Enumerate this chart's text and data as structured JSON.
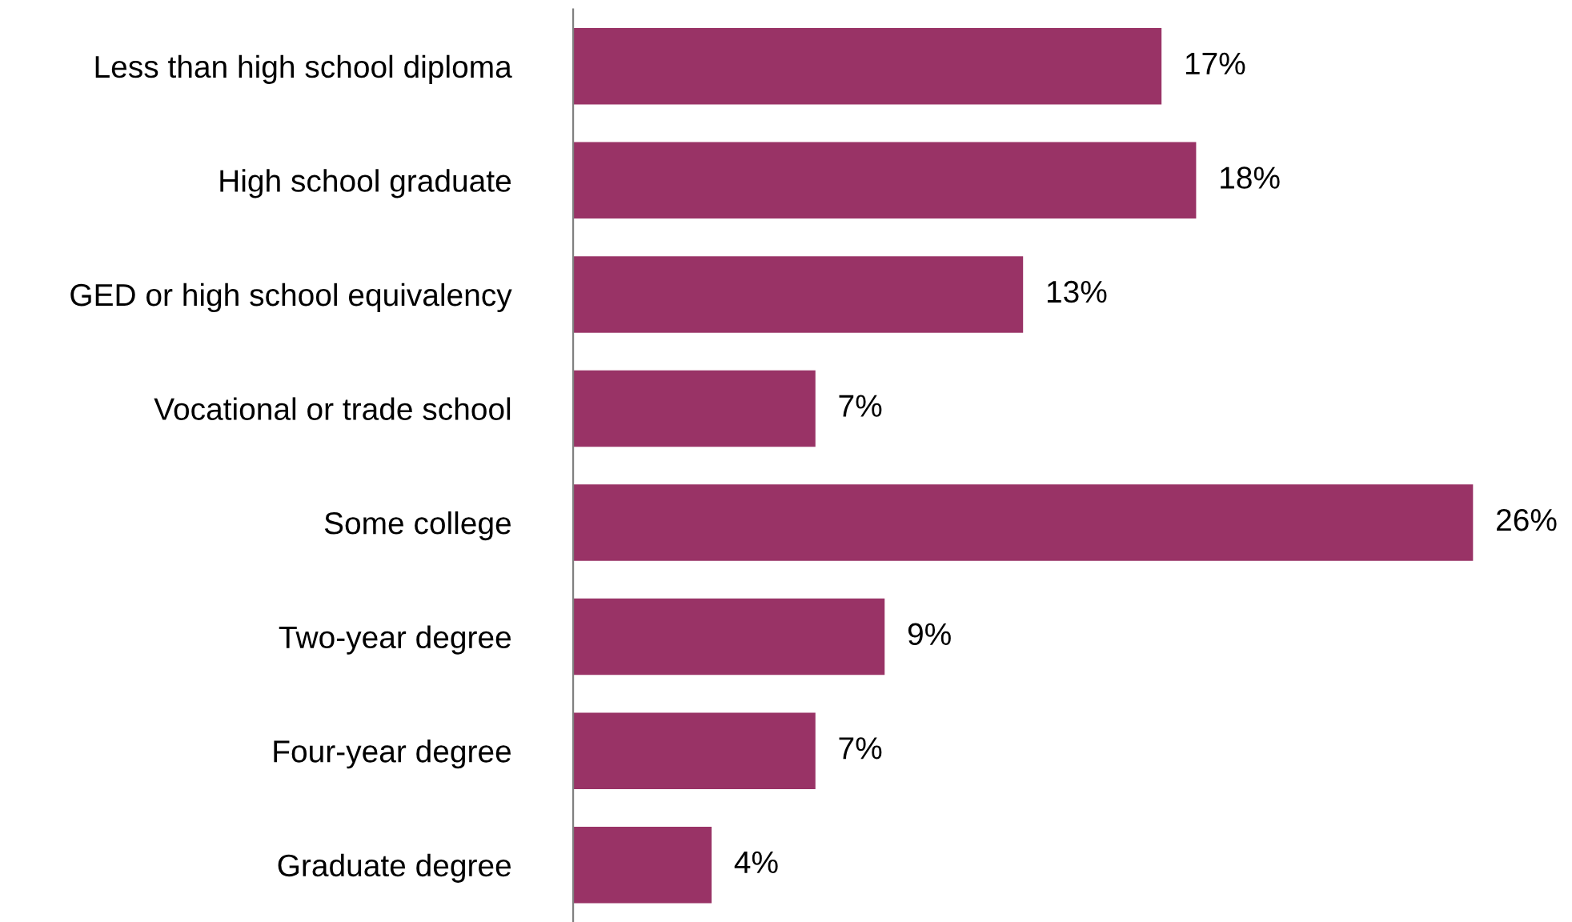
{
  "chart_data": {
    "type": "bar",
    "orientation": "horizontal",
    "categories": [
      "Less than high school diploma",
      "High school graduate",
      "GED or high school equivalency",
      "Vocational or trade school",
      "Some college",
      "Two-year degree",
      "Four-year degree",
      "Graduate degree"
    ],
    "values": [
      17,
      18,
      13,
      7,
      26,
      9,
      7,
      4
    ],
    "value_labels": [
      "17%",
      "18%",
      "13%",
      "7%",
      "26%",
      "9%",
      "7%",
      "4%"
    ],
    "color": "#993366",
    "tick_labels": "y",
    "grid": false,
    "legend": false
  }
}
